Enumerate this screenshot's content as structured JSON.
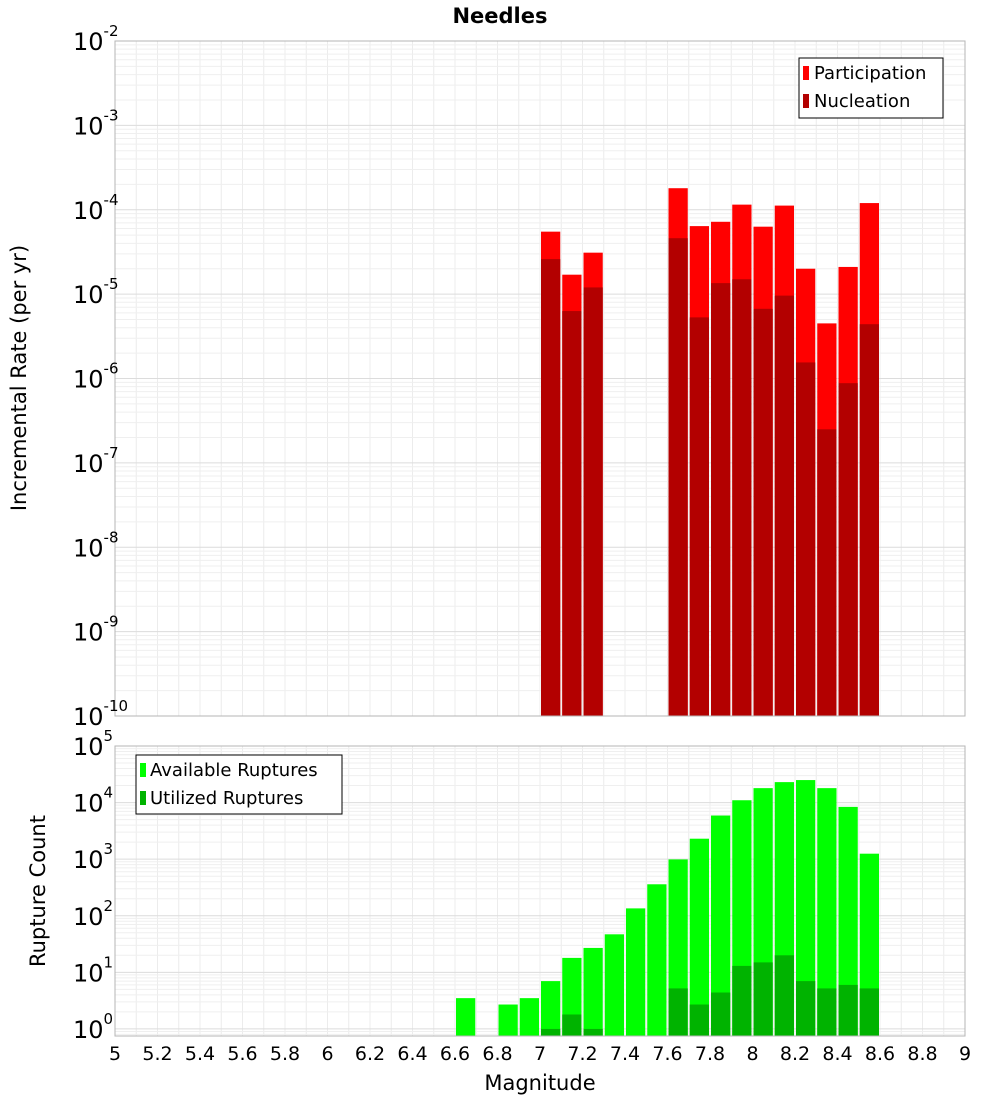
{
  "chart_data": [
    {
      "type": "bar",
      "title": "Needles",
      "ylabel": "Incremental Rate (per yr)",
      "xlabel": "",
      "yscale": "log",
      "ylim": [
        1e-10,
        0.01
      ],
      "xlim": [
        5,
        9
      ],
      "bin_width": 0.1,
      "ytick_exponents": [
        -10,
        -9,
        -8,
        -7,
        -6,
        -5,
        -4,
        -3,
        -2
      ],
      "legend": {
        "position": "top-right",
        "entries": [
          "Participation",
          "Nucleation"
        ]
      },
      "series": [
        {
          "name": "Participation",
          "color": "#ff0000",
          "x": [
            7.05,
            7.15,
            7.25,
            7.65,
            7.75,
            7.85,
            7.95,
            8.05,
            8.15,
            8.25,
            8.35,
            8.45,
            8.55
          ],
          "values": [
            5.5e-05,
            1.7e-05,
            3.1e-05,
            0.00018,
            6.4e-05,
            7.2e-05,
            0.000115,
            6.3e-05,
            0.000112,
            2e-05,
            4.5e-06,
            2.1e-05,
            0.00012
          ]
        },
        {
          "name": "Nucleation",
          "color": "#b30000",
          "x": [
            7.05,
            7.15,
            7.25,
            7.65,
            7.75,
            7.85,
            7.95,
            8.05,
            8.15,
            8.25,
            8.35,
            8.45,
            8.55
          ],
          "values": [
            2.6e-05,
            6.3e-06,
            1.2e-05,
            4.6e-05,
            5.3e-06,
            1.35e-05,
            1.5e-05,
            6.7e-06,
            9.6e-06,
            1.55e-06,
            2.5e-07,
            8.8e-07,
            4.4e-06
          ]
        }
      ]
    },
    {
      "type": "bar",
      "title": "",
      "ylabel": "Rupture Count",
      "xlabel": "Magnitude",
      "yscale": "log",
      "ylim": [
        0.75,
        100000.0
      ],
      "xlim": [
        5,
        9
      ],
      "bin_width": 0.1,
      "ytick_exponents": [
        0,
        1,
        2,
        3,
        4,
        5
      ],
      "xticks": [
        "5",
        "5.2",
        "5.4",
        "5.6",
        "5.8",
        "6",
        "6.2",
        "6.4",
        "6.6",
        "6.8",
        "7",
        "7.2",
        "7.4",
        "7.6",
        "7.8",
        "8",
        "8.2",
        "8.4",
        "8.6",
        "8.8",
        "9"
      ],
      "legend": {
        "position": "top-left",
        "entries": [
          "Available Ruptures",
          "Utilized Ruptures"
        ]
      },
      "series": [
        {
          "name": "Available Ruptures",
          "color": "#00ff00",
          "x": [
            6.65,
            6.85,
            6.95,
            7.05,
            7.15,
            7.25,
            7.35,
            7.45,
            7.55,
            7.65,
            7.75,
            7.85,
            7.95,
            8.05,
            8.15,
            8.25,
            8.35,
            8.45,
            8.55
          ],
          "values": [
            3.5,
            2.7,
            3.5,
            7,
            18,
            27,
            47,
            135,
            360,
            990,
            2300,
            5900,
            11000,
            18000,
            23000,
            25000,
            18000,
            8400,
            1250
          ]
        },
        {
          "name": "Utilized Ruptures",
          "color": "#00b300",
          "x": [
            7.05,
            7.15,
            7.25,
            7.65,
            7.75,
            7.85,
            7.95,
            8.05,
            8.15,
            8.25,
            8.35,
            8.45,
            8.55
          ],
          "values": [
            1,
            1.8,
            1,
            5.2,
            2.7,
            4.4,
            13,
            15,
            20,
            7,
            5.2,
            6,
            5.2
          ]
        }
      ]
    }
  ]
}
